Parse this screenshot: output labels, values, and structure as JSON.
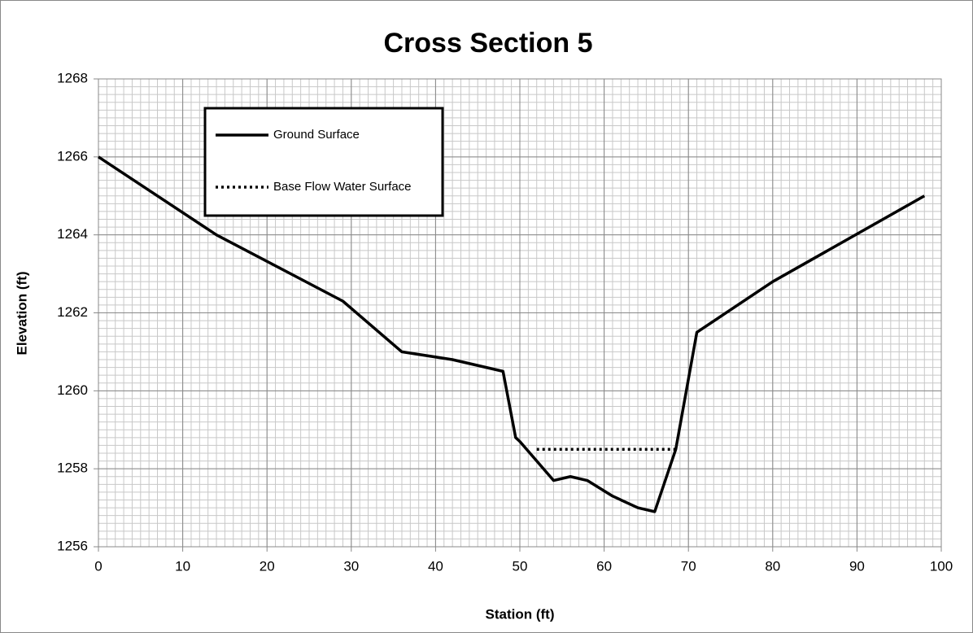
{
  "chart_data": {
    "type": "line",
    "title": "Cross Section 5",
    "x_label": "Station (ft)",
    "y_label": "Elevation (ft)",
    "xlim": [
      0,
      100
    ],
    "xticks": [
      0,
      10,
      20,
      30,
      40,
      50,
      60,
      70,
      80,
      90,
      100
    ],
    "ylim": [
      1256,
      1268
    ],
    "yticks": [
      1256,
      1258,
      1260,
      1262,
      1264,
      1266,
      1268
    ],
    "grid": true,
    "minor_grid": {
      "x": 1,
      "y": 0.2
    },
    "legend": "upper left",
    "series": [
      {
        "name": "Ground Surface",
        "color": "#000000",
        "dash": "solid",
        "x": [
          0,
          14,
          29,
          36,
          42,
          48,
          49.5,
          50,
          54,
          56,
          58,
          61,
          64,
          66,
          68.5,
          71,
          80,
          98
        ],
        "values": [
          1266,
          1264,
          1262.3,
          1261,
          1260.8,
          1260.5,
          1258.8,
          1258.7,
          1257.7,
          1257.8,
          1257.7,
          1257.3,
          1257.0,
          1256.9,
          1258.5,
          1261.5,
          1262.8,
          1265
        ]
      },
      {
        "name": "Base Flow Water Surface",
        "color": "#000000",
        "dash": "dotted",
        "x": [
          52,
          68.5
        ],
        "values": [
          1258.5,
          1258.5
        ]
      }
    ]
  }
}
